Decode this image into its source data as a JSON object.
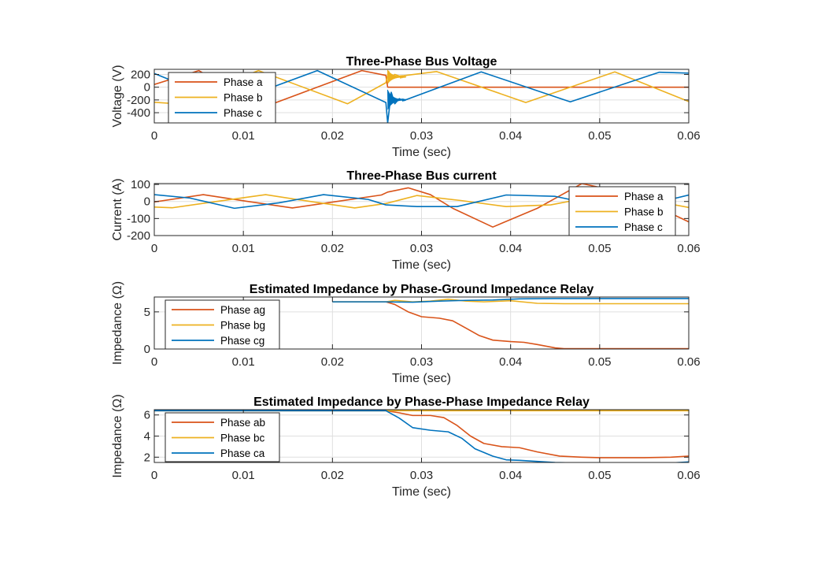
{
  "colors": {
    "series1": "#D95319",
    "series2": "#EDB120",
    "series3": "#0072BD",
    "axis": "#262626",
    "grid": "#DFDFDF"
  },
  "chart_data": [
    {
      "type": "line",
      "title": "Three-Phase Bus Voltage",
      "xlabel": "Time (sec)",
      "ylabel": "Voltage (V)",
      "xlim": [
        0,
        0.06
      ],
      "ylim": [
        -560,
        280
      ],
      "xticks": [
        0,
        0.01,
        0.02,
        0.03,
        0.04,
        0.05,
        0.06
      ],
      "xtick_labels": [
        "0",
        "0.01",
        "0.02",
        "0.03",
        "0.04",
        "0.05",
        "0.06"
      ],
      "yticks": [
        -400,
        -200,
        0,
        200
      ],
      "ytick_labels": [
        "-400",
        "-200",
        "0",
        "200"
      ],
      "grid": true,
      "legend_position": "top-left",
      "fault_time": 0.026,
      "series": [
        {
          "name": "Phase a",
          "x": [
            0,
            0.005,
            0.0083,
            0.0133,
            0.0183,
            0.0233,
            0.026,
            0.0262,
            0.03,
            0.06
          ],
          "y": [
            43,
            260,
            0,
            -260,
            0,
            260,
            185,
            0,
            0,
            0
          ]
        },
        {
          "name": "Phase b",
          "x": [
            0,
            0.002,
            0.0117,
            0.0217,
            0.026,
            0.0263,
            0.0266,
            0.027,
            0.0275,
            0.028,
            0.0317,
            0.0417,
            0.0517,
            0.06
          ],
          "y": [
            -237,
            -255,
            260,
            -260,
            70,
            250,
            150,
            200,
            175,
            180,
            245,
            -240,
            240,
            -225
          ]
        },
        {
          "name": "Phase c",
          "x": [
            0,
            0.0083,
            0.0183,
            0.026,
            0.0262,
            0.0266,
            0.027,
            0.0275,
            0.028,
            0.0367,
            0.0467,
            0.0567,
            0.06
          ],
          "y": [
            215,
            -255,
            260,
            -240,
            -560,
            -80,
            -260,
            -180,
            -210,
            240,
            -230,
            235,
            220
          ]
        }
      ]
    },
    {
      "type": "line",
      "title": "Three-Phase Bus current",
      "xlabel": "Time (sec)",
      "ylabel": "Current (A)",
      "xlim": [
        0,
        0.06
      ],
      "ylim": [
        -200,
        105
      ],
      "xticks": [
        0,
        0.01,
        0.02,
        0.03,
        0.04,
        0.05,
        0.06
      ],
      "xtick_labels": [
        "0",
        "0.01",
        "0.02",
        "0.03",
        "0.04",
        "0.05",
        "0.06"
      ],
      "yticks": [
        -200,
        -100,
        0,
        100
      ],
      "ytick_labels": [
        "-200",
        "-100",
        "0",
        "100"
      ],
      "grid": true,
      "legend_position": "right",
      "series": [
        {
          "name": "Phase a",
          "x": [
            0,
            0.0055,
            0.0105,
            0.0155,
            0.0205,
            0.0255,
            0.0262,
            0.0285,
            0.031,
            0.0335,
            0.038,
            0.043,
            0.048,
            0.053,
            0.058,
            0.06
          ],
          "y": [
            -3,
            40,
            0,
            -38,
            0,
            38,
            55,
            80,
            40,
            -40,
            -150,
            -40,
            105,
            50,
            -70,
            -120
          ]
        },
        {
          "name": "Phase b",
          "x": [
            0,
            0.002,
            0.007,
            0.0125,
            0.0175,
            0.0225,
            0.026,
            0.0295,
            0.0345,
            0.0395,
            0.0445,
            0.0495,
            0.0545,
            0.06
          ],
          "y": [
            -33,
            -37,
            0,
            40,
            0,
            -38,
            -12,
            35,
            5,
            -30,
            -20,
            30,
            18,
            -35
          ]
        },
        {
          "name": "Phase c",
          "x": [
            0,
            0.004,
            0.009,
            0.014,
            0.019,
            0.024,
            0.026,
            0.0295,
            0.034,
            0.0395,
            0.045,
            0.05,
            0.055,
            0.06
          ],
          "y": [
            40,
            20,
            -40,
            -8,
            40,
            12,
            -20,
            -30,
            -30,
            38,
            30,
            -25,
            -25,
            38
          ]
        }
      ]
    },
    {
      "type": "line",
      "title": "Estimated Impedance by Phase-Ground Impedance Relay",
      "xlabel": "Time (sec)",
      "ylabel": "Impedance (Ω)",
      "xlim": [
        0,
        0.06
      ],
      "ylim": [
        0,
        7
      ],
      "xticks": [
        0,
        0.01,
        0.02,
        0.03,
        0.04,
        0.05,
        0.06
      ],
      "xtick_labels": [
        "0",
        "0.01",
        "0.02",
        "0.03",
        "0.04",
        "0.05",
        "0.06"
      ],
      "yticks": [
        0,
        5
      ],
      "ytick_labels": [
        "0",
        "5"
      ],
      "grid": true,
      "legend_position": "top-left",
      "series": [
        {
          "name": "Phase ag",
          "x": [
            0.02,
            0.026,
            0.027,
            0.0285,
            0.03,
            0.032,
            0.0335,
            0.035,
            0.0365,
            0.038,
            0.04,
            0.0415,
            0.043,
            0.045,
            0.046,
            0.05,
            0.06
          ],
          "y": [
            6.35,
            6.35,
            6.0,
            5.0,
            4.35,
            4.15,
            3.8,
            2.8,
            1.8,
            1.2,
            1.0,
            0.9,
            0.6,
            0.15,
            0.05,
            0.05,
            0.05
          ]
        },
        {
          "name": "Phase bg",
          "x": [
            0.02,
            0.026,
            0.027,
            0.029,
            0.031,
            0.033,
            0.035,
            0.037,
            0.04,
            0.043,
            0.046,
            0.05,
            0.06
          ],
          "y": [
            6.35,
            6.35,
            6.55,
            6.35,
            6.45,
            6.7,
            6.45,
            6.35,
            6.5,
            6.15,
            6.1,
            6.1,
            6.1
          ]
        },
        {
          "name": "Phase cg",
          "x": [
            0.02,
            0.026,
            0.029,
            0.032,
            0.035,
            0.038,
            0.041,
            0.045,
            0.05,
            0.06
          ],
          "y": [
            6.35,
            6.35,
            6.3,
            6.45,
            6.55,
            6.6,
            6.75,
            6.8,
            6.8,
            6.8
          ]
        }
      ]
    },
    {
      "type": "line",
      "title": "Estimated Impedance by Phase-Phase Impedance Relay",
      "xlabel": "Time (sec)",
      "ylabel": "Impedance (Ω)",
      "xlim": [
        0,
        0.06
      ],
      "ylim": [
        1.5,
        6.5
      ],
      "xticks": [
        0,
        0.01,
        0.02,
        0.03,
        0.04,
        0.05,
        0.06
      ],
      "xtick_labels": [
        "0",
        "0.01",
        "0.02",
        "0.03",
        "0.04",
        "0.05",
        "0.06"
      ],
      "yticks": [
        2,
        4,
        6
      ],
      "ytick_labels": [
        "2",
        "4",
        "6"
      ],
      "grid": true,
      "legend_position": "top-left",
      "series": [
        {
          "name": "Phase ab",
          "x": [
            0,
            0.026,
            0.0275,
            0.029,
            0.031,
            0.0325,
            0.034,
            0.0355,
            0.037,
            0.039,
            0.041,
            0.043,
            0.0455,
            0.048,
            0.05,
            0.055,
            0.058,
            0.06
          ],
          "y": [
            6.4,
            6.4,
            6.2,
            5.95,
            5.95,
            5.75,
            5.0,
            4.0,
            3.3,
            3.0,
            2.9,
            2.5,
            2.1,
            2.0,
            1.95,
            1.95,
            2.0,
            2.1
          ]
        },
        {
          "name": "Phase bc",
          "x": [
            0,
            0.06
          ],
          "y": [
            6.4,
            6.4
          ]
        },
        {
          "name": "Phase ca",
          "x": [
            0,
            0.026,
            0.0275,
            0.029,
            0.031,
            0.033,
            0.0345,
            0.036,
            0.038,
            0.0395,
            0.041,
            0.043,
            0.045,
            0.048,
            0.05,
            0.055,
            0.058,
            0.06
          ],
          "y": [
            6.4,
            6.4,
            5.7,
            4.8,
            4.55,
            4.4,
            3.8,
            2.8,
            2.1,
            1.75,
            1.7,
            1.6,
            1.5,
            1.45,
            1.45,
            1.45,
            1.45,
            1.55
          ]
        }
      ]
    }
  ]
}
